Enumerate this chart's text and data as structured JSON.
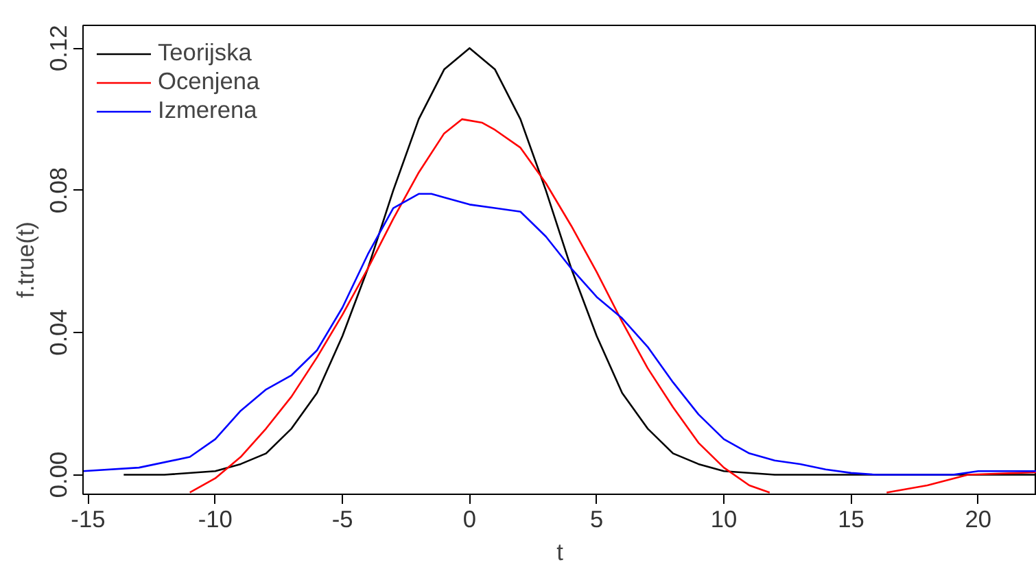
{
  "chart_data": {
    "type": "line",
    "xlabel": "t",
    "ylabel": "f.true(t)",
    "xlim": [
      -15.2,
      22.3
    ],
    "ylim": [
      -0.0055,
      0.1264
    ],
    "xticks": [
      -15,
      -10,
      -5,
      0,
      5,
      10,
      15,
      20
    ],
    "yticks": [
      {
        "value": 0,
        "label": "0.00"
      },
      {
        "value": 0.04,
        "label": "0.04"
      },
      {
        "value": 0.08,
        "label": "0.08"
      },
      {
        "value": 0.12,
        "label": "0.12"
      }
    ],
    "grid": false,
    "legend": "top left",
    "line_style": "solid",
    "marker": "none",
    "series": [
      {
        "name": "Teorijska",
        "color": "#000000",
        "x": [
          -13.6,
          -12,
          -10,
          -9,
          -8,
          -7,
          -6,
          -5,
          -4,
          -3,
          -2,
          -1,
          0,
          1,
          2,
          3,
          4,
          5,
          6,
          7,
          8,
          9,
          10,
          12,
          15,
          22.3
        ],
        "values": [
          0,
          0,
          0.001,
          0.003,
          0.006,
          0.013,
          0.023,
          0.039,
          0.058,
          0.08,
          0.1,
          0.114,
          0.12,
          0.114,
          0.1,
          0.08,
          0.058,
          0.039,
          0.023,
          0.013,
          0.006,
          0.003,
          0.001,
          0,
          0,
          0
        ]
      },
      {
        "name": "Ocenjena",
        "color": "#ff0000",
        "x": [
          -11.0,
          -10,
          -9,
          -8,
          -7,
          -6,
          -5,
          -4,
          -3,
          -2,
          -1,
          -0.3,
          0.5,
          1,
          2,
          3,
          4,
          5,
          6,
          7,
          8,
          9,
          10,
          11,
          11.8,
          14,
          16.4,
          18,
          19.6,
          22.3
        ],
        "values": [
          -0.005,
          -0.001,
          0.005,
          0.013,
          0.022,
          0.033,
          0.045,
          0.058,
          0.072,
          0.085,
          0.096,
          0.1,
          0.099,
          0.097,
          0.092,
          0.082,
          0.07,
          0.057,
          0.043,
          0.03,
          0.019,
          0.009,
          0.002,
          -0.003,
          -0.005,
          null,
          -0.005,
          -0.003,
          0,
          0.0007
        ]
      },
      {
        "name": "Izmerena",
        "color": "#0000ff",
        "x": [
          -15.2,
          -13,
          -11,
          -10,
          -9,
          -8,
          -7,
          -6,
          -5,
          -4,
          -3,
          -2,
          -1.5,
          -1,
          0,
          1,
          2,
          3,
          4,
          5,
          6,
          7,
          8,
          9,
          10,
          11,
          12,
          13,
          14,
          15,
          16,
          19,
          20,
          22.3
        ],
        "values": [
          0.001,
          0.002,
          0.005,
          0.01,
          0.018,
          0.024,
          0.028,
          0.035,
          0.047,
          0.062,
          0.075,
          0.079,
          0.079,
          0.078,
          0.076,
          0.075,
          0.074,
          0.067,
          0.058,
          0.05,
          0.044,
          0.036,
          0.026,
          0.017,
          0.01,
          0.006,
          0.004,
          0.003,
          0.0015,
          0.0005,
          0,
          0,
          0.001,
          0.001
        ]
      }
    ]
  }
}
